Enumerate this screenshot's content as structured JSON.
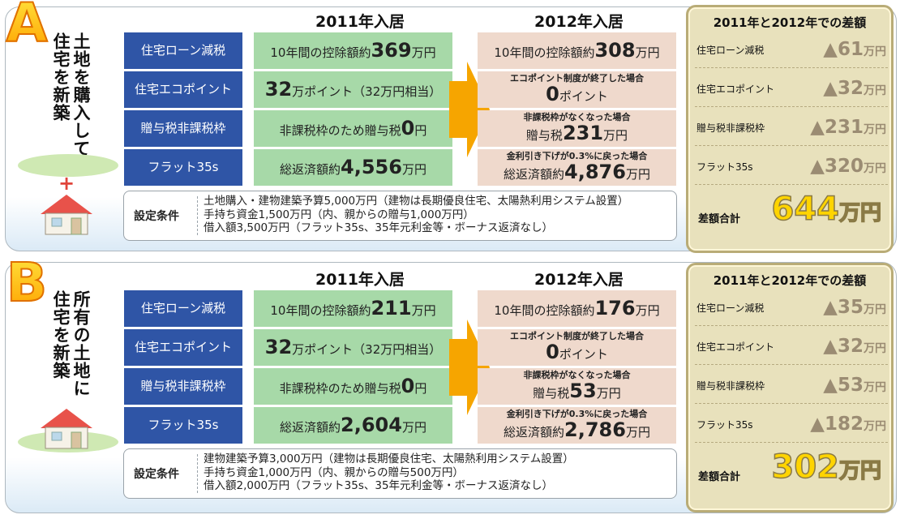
{
  "year_2011_header": "2011年入居",
  "year_2012_header": "2012年入居",
  "condition_label": "設定条件",
  "diff_title": "2011年と2012年での差額",
  "diff_total_label": "差額合計",
  "categories": [
    "住宅ローン減税",
    "住宅エコポイント",
    "贈与税非課税枠",
    "フラット35s"
  ],
  "diff_labels": [
    "住宅ローン減税",
    "住宅エコポイント",
    "贈与税非課税枠",
    "フラット35s"
  ],
  "colors": {
    "category_blue": "#2f55a6",
    "green_cell": "#a7d9a8",
    "pink_cell": "#efd9cc",
    "arrow_orange": "#f6a500",
    "badge_yellow": "#ffd400",
    "diff_bg": "#e8e1bc"
  },
  "panel_a": {
    "badge": "A",
    "title": "土地を購入して住宅を新築",
    "y2011": {
      "loan": {
        "prefix": "10年間の控除額約",
        "num": "369",
        "unit": "万円"
      },
      "eco": {
        "num": "32",
        "rest": "万ポイント（32万円相当）"
      },
      "gift": {
        "prefix": "非課税枠のため贈与税",
        "num": "0",
        "unit": "円"
      },
      "flat": {
        "prefix": "総返済額約",
        "num": "4,556",
        "unit": "万円"
      }
    },
    "y2012": {
      "loan": {
        "prefix": "10年間の控除額約",
        "num": "308",
        "unit": "万円"
      },
      "eco": {
        "note": "エコポイント制度が終了した場合",
        "num": "0",
        "unit": "ポイント"
      },
      "gift": {
        "note": "非課税枠がなくなった場合",
        "prefix": "贈与税",
        "num": "231",
        "unit": "万円"
      },
      "flat": {
        "note": "金利引き下げが0.3%に戻った場合",
        "prefix": "総返済額約",
        "num": "4,876",
        "unit": "万円"
      }
    },
    "conditions": [
      "土地購入・建物建築予算5,000万円（建物は長期優良住宅、太陽熱利用システム設置）",
      "手持ち資金1,500万円（内、親からの贈与1,000万円）",
      "借入額3,500万円（フラット35s、35年元利金等・ボーナス返済なし）"
    ],
    "diffs": [
      {
        "num": "▲61",
        "unit": "万円"
      },
      {
        "num": "▲32",
        "unit": "万円"
      },
      {
        "num": "▲231",
        "unit": "万円"
      },
      {
        "num": "▲320",
        "unit": "万円"
      }
    ],
    "total": {
      "num": "644",
      "unit": "万円"
    }
  },
  "panel_b": {
    "badge": "B",
    "title": "所有の土地に住宅を新築",
    "y2011": {
      "loan": {
        "prefix": "10年間の控除額約",
        "num": "211",
        "unit": "万円"
      },
      "eco": {
        "num": "32",
        "rest": "万ポイント（32万円相当）"
      },
      "gift": {
        "prefix": "非課税枠のため贈与税",
        "num": "0",
        "unit": "円"
      },
      "flat": {
        "prefix": "総返済額約",
        "num": "2,604",
        "unit": "万円"
      }
    },
    "y2012": {
      "loan": {
        "prefix": "10年間の控除額約",
        "num": "176",
        "unit": "万円"
      },
      "eco": {
        "note": "エコポイント制度が終了した場合",
        "num": "0",
        "unit": "ポイント"
      },
      "gift": {
        "note": "非課税枠がなくなった場合",
        "prefix": "贈与税",
        "num": "53",
        "unit": "万円"
      },
      "flat": {
        "note": "金利引き下げが0.3%に戻った場合",
        "prefix": "総返済額約",
        "num": "2,786",
        "unit": "万円"
      }
    },
    "conditions": [
      "建物建築予算3,000万円（建物は長期優良住宅、太陽熱利用システム設置）",
      "手持ち資金1,000万円（内、親からの贈与500万円）",
      "借入額2,000万円（フラット35s、35年元利金等・ボーナス返済なし）"
    ],
    "diffs": [
      {
        "num": "▲35",
        "unit": "万円"
      },
      {
        "num": "▲32",
        "unit": "万円"
      },
      {
        "num": "▲53",
        "unit": "万円"
      },
      {
        "num": "▲182",
        "unit": "万円"
      }
    ],
    "total": {
      "num": "302",
      "unit": "万円"
    }
  }
}
